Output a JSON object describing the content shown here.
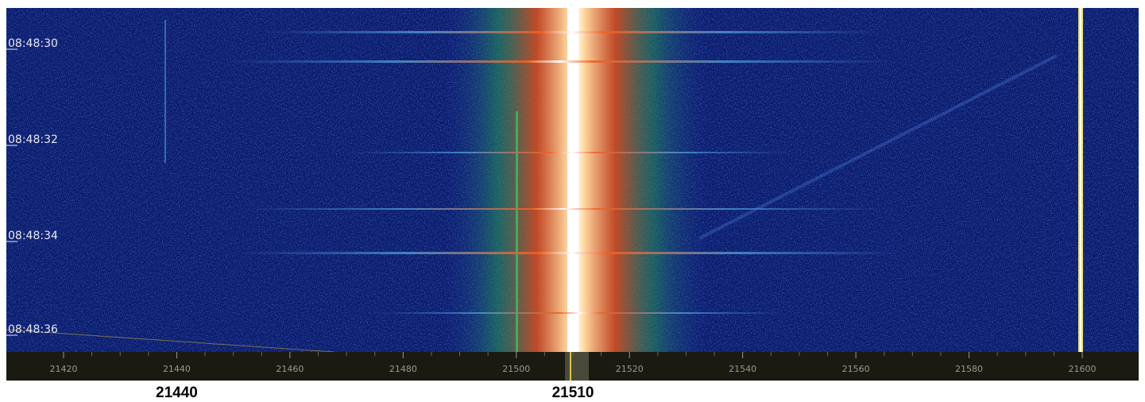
{
  "waterfall": {
    "time_labels": [
      "08:48:30",
      "08:48:32",
      "08:48:34",
      "08:48:36"
    ],
    "freq_ticks": [
      21420,
      21440,
      21460,
      21480,
      21500,
      21520,
      21540,
      21560,
      21580,
      21600
    ],
    "markers": [
      21440,
      21510
    ]
  }
}
